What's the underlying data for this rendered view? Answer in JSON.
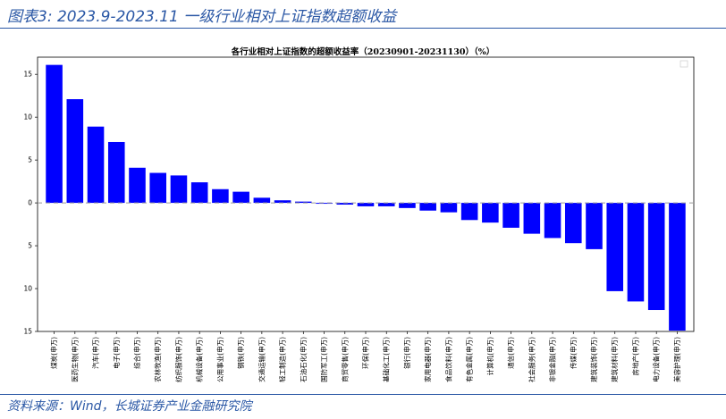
{
  "figure": {
    "label": "图表3:",
    "title": "2023.9-2023.11 一级行业相对上证指数超额收益",
    "source": "资料来源：Wind，长城证券产业金融研究院"
  },
  "colors": {
    "bar": "#0000ff",
    "accent": "#2a57a5",
    "zero_line": "#999999"
  },
  "chart_data": {
    "type": "bar",
    "title": "各行业相对上证指数的超额收益率（20230901-20231130）（%）",
    "xlabel": "",
    "ylabel": "",
    "ylim": [
      -15,
      17
    ],
    "yticks": [
      15,
      10,
      5,
      0,
      -5,
      -10,
      -15
    ],
    "ytick_labels": [
      "15",
      "10",
      "5",
      "0",
      "5",
      "10",
      "15"
    ],
    "grid": false,
    "legend": "top-right (empty)",
    "categories": [
      "煤炭(申万)",
      "医药生物(申万)",
      "汽车(申万)",
      "电子(申万)",
      "综合(申万)",
      "农林牧渔(申万)",
      "纺织服饰(申万)",
      "机械设备(申万)",
      "公用事业(申万)",
      "钢铁(申万)",
      "交通运输(申万)",
      "轻工制造(申万)",
      "石油石化(申万)",
      "国防军工(申万)",
      "商贸零售(申万)",
      "环保(申万)",
      "基础化工(申万)",
      "银行(申万)",
      "家用电器(申万)",
      "食品饮料(申万)",
      "有色金属(申万)",
      "计算机(申万)",
      "通信(申万)",
      "社会服务(申万)",
      "非银金融(申万)",
      "传媒(申万)",
      "建筑装饰(申万)",
      "建筑材料(申万)",
      "房地产(申万)",
      "电力设备(申万)",
      "美容护理(申万)"
    ],
    "values": [
      16.1,
      12.1,
      8.9,
      7.1,
      4.1,
      3.5,
      3.2,
      2.4,
      1.6,
      1.3,
      0.6,
      0.3,
      0.15,
      -0.1,
      -0.2,
      -0.4,
      -0.4,
      -0.6,
      -0.9,
      -1.1,
      -2.0,
      -2.3,
      -2.9,
      -3.6,
      -4.1,
      -4.7,
      -5.4,
      -10.3,
      -11.5,
      -12.5,
      -14.9
    ]
  }
}
